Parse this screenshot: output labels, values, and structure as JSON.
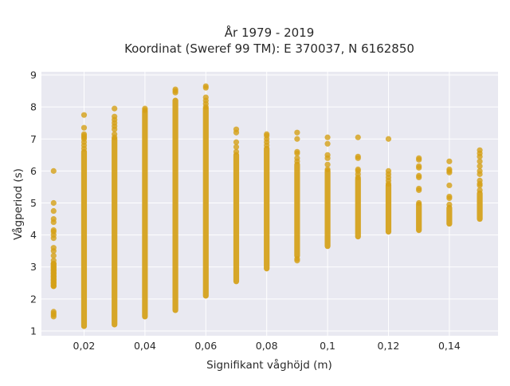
{
  "chart_data": {
    "type": "scatter",
    "title": "År 1979 - 2019",
    "subtitle": "Koordinat (Sweref 99 TM): E 370037, N 6162850",
    "xlabel": "Signifikant våghöjd (m)",
    "ylabel": "Vågperiod (s)",
    "xlim": [
      0.006,
      0.156
    ],
    "ylim": [
      0.85,
      9.1
    ],
    "x_ticks": [
      0.02,
      0.04,
      0.06,
      0.08,
      0.1,
      0.12,
      0.14
    ],
    "x_tick_labels": [
      "0,02",
      "0,04",
      "0,06",
      "0,08",
      "0,1",
      "0,12",
      "0,14"
    ],
    "y_ticks": [
      1,
      2,
      3,
      4,
      5,
      6,
      7,
      8,
      9
    ],
    "y_tick_labels": [
      "1",
      "2",
      "3",
      "4",
      "5",
      "6",
      "7",
      "8",
      "9"
    ],
    "grid": true,
    "background": "#e9e9f1",
    "marker_color": "#d4a017",
    "columns": [
      {
        "x": 0.01,
        "band": [
          2.4,
          3.1
        ],
        "points": [
          1.45,
          1.5,
          1.55,
          1.6,
          2.4,
          2.5,
          2.6,
          2.7,
          2.8,
          2.9,
          3.0,
          3.1,
          3.2,
          3.35,
          3.5,
          3.6,
          3.9,
          4.0,
          4.1,
          4.15,
          4.4,
          4.5,
          4.75,
          5.0,
          6.0
        ]
      },
      {
        "x": 0.02,
        "band": [
          1.15,
          6.6
        ],
        "points": [
          6.7,
          6.8,
          6.9,
          7.0,
          7.05,
          7.1,
          7.15,
          7.35,
          7.75
        ]
      },
      {
        "x": 0.03,
        "band": [
          1.2,
          7.0
        ],
        "points": [
          7.05,
          7.15,
          7.3,
          7.4,
          7.5,
          7.6,
          7.7,
          7.95
        ]
      },
      {
        "x": 0.04,
        "band": [
          1.45,
          7.85
        ],
        "points": [
          7.9,
          7.95
        ]
      },
      {
        "x": 0.05,
        "band": [
          1.65,
          8.2
        ],
        "points": [
          8.45,
          8.5,
          8.55
        ]
      },
      {
        "x": 0.06,
        "band": [
          2.1,
          7.95
        ],
        "points": [
          8.0,
          8.1,
          8.2,
          8.3,
          8.6,
          8.65
        ]
      },
      {
        "x": 0.07,
        "band": [
          2.55,
          6.5
        ],
        "points": [
          6.6,
          6.75,
          6.9,
          7.2,
          7.3
        ]
      },
      {
        "x": 0.08,
        "band": [
          2.95,
          6.7
        ],
        "points": [
          6.8,
          6.9,
          7.0,
          7.1,
          7.15
        ]
      },
      {
        "x": 0.09,
        "band": [
          3.35,
          6.2
        ],
        "points": [
          3.2,
          3.25,
          6.3,
          6.4,
          6.55,
          6.6,
          7.0,
          7.2
        ]
      },
      {
        "x": 0.1,
        "band": [
          3.65,
          6.0
        ],
        "points": [
          6.05,
          6.2,
          6.4,
          6.5,
          6.85,
          7.05
        ]
      },
      {
        "x": 0.11,
        "band": [
          3.95,
          5.75
        ],
        "points": [
          5.8,
          5.9,
          6.0,
          6.05,
          6.4,
          6.45,
          7.05
        ]
      },
      {
        "x": 0.12,
        "band": [
          4.1,
          5.55
        ],
        "points": [
          5.6,
          5.7,
          5.8,
          5.9,
          6.0,
          7.0
        ]
      },
      {
        "x": 0.13,
        "band": [
          4.15,
          4.95
        ],
        "points": [
          5.0,
          5.4,
          5.45,
          5.8,
          5.85,
          6.1,
          6.15,
          6.35,
          6.4
        ]
      },
      {
        "x": 0.14,
        "band": [
          4.35,
          4.85
        ],
        "points": [
          4.95,
          5.15,
          5.2,
          5.55,
          5.95,
          6.0,
          6.05,
          6.3
        ]
      },
      {
        "x": 0.15,
        "band": [
          4.5,
          5.3
        ],
        "points": [
          5.4,
          5.55,
          5.6,
          5.7,
          5.9,
          6.0,
          6.15,
          6.3,
          6.45,
          6.55,
          6.65
        ]
      }
    ]
  }
}
